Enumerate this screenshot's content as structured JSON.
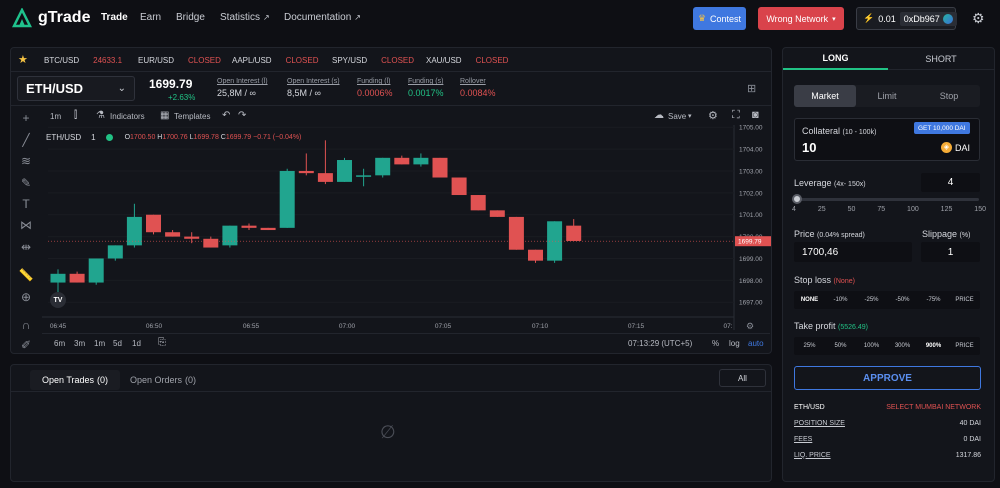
{
  "brand": {
    "name": "gTrade"
  },
  "nav": [
    {
      "label": "Trade"
    },
    {
      "label": "Earn"
    },
    {
      "label": "Bridge"
    },
    {
      "label": "Statistics"
    },
    {
      "label": "Documentation"
    }
  ],
  "header": {
    "contest_label": "Contest",
    "network_label": "Wrong Network",
    "balance": "0.01",
    "wallet": "0xDb967"
  },
  "tickers": [
    {
      "pair": "BTC/USD",
      "value": "24633.1"
    },
    {
      "pair": "EUR/USD",
      "value": "CLOSED"
    },
    {
      "pair": "AAPL/USD",
      "value": "CLOSED"
    },
    {
      "pair": "SPY/USD",
      "value": "CLOSED"
    },
    {
      "pair": "XAU/USD",
      "value": "CLOSED"
    }
  ],
  "market": {
    "pair": "ETH/USD",
    "price": "1699.79",
    "change": "+2.63%"
  },
  "stats": [
    {
      "label": "Open Interest (l)",
      "value": "25,8M / ∞"
    },
    {
      "label": "Open Interest (s)",
      "value": "8,5M / ∞"
    },
    {
      "label": "Funding (l)",
      "value": "0.0006%"
    },
    {
      "label": "Funding (s)",
      "value": "0.0017%"
    },
    {
      "label": "Rollover",
      "value": "0.0084%"
    }
  ],
  "chart_toolbar": {
    "interval": "1m",
    "indicators": "Indicators",
    "templates": "Templates",
    "save": "Save"
  },
  "legend": {
    "symbol": "ETH/USD",
    "interval": "1",
    "o_lbl": "O",
    "o": "1700.50",
    "h_lbl": "H",
    "h": "1700.76",
    "l_lbl": "L",
    "l": "1699.78",
    "c_lbl": "C",
    "c": "1699.79",
    "chg": "−0.71 (−0.04%)"
  },
  "chart_data": {
    "type": "candlestick",
    "ylim": [
      1696.6,
      1705.1
    ],
    "yticks": [
      "1705.00",
      "1704.00",
      "1703.00",
      "1702.00",
      "1701.00",
      "1700.00",
      "1699.00",
      "1698.00",
      "1697.00"
    ],
    "xticks": [
      "06:45",
      "06:50",
      "06:55",
      "07:00",
      "07:05",
      "07:10",
      "07:15",
      "07:"
    ],
    "last_price": "1699.79",
    "candles": [
      {
        "o": 1697.9,
        "h": 1698.5,
        "l": 1697.3,
        "c": 1698.3
      },
      {
        "o": 1698.3,
        "h": 1698.4,
        "l": 1697.9,
        "c": 1697.9
      },
      {
        "o": 1697.9,
        "h": 1699.0,
        "l": 1697.8,
        "c": 1699.0
      },
      {
        "o": 1699.0,
        "h": 1699.6,
        "l": 1698.9,
        "c": 1699.6
      },
      {
        "o": 1699.6,
        "h": 1701.5,
        "l": 1699.5,
        "c": 1700.9
      },
      {
        "o": 1701.0,
        "h": 1701.0,
        "l": 1700.1,
        "c": 1700.2
      },
      {
        "o": 1700.2,
        "h": 1700.3,
        "l": 1700.0,
        "c": 1700.0
      },
      {
        "o": 1700.0,
        "h": 1700.2,
        "l": 1699.7,
        "c": 1699.9
      },
      {
        "o": 1699.9,
        "h": 1700.0,
        "l": 1699.5,
        "c": 1699.5
      },
      {
        "o": 1699.6,
        "h": 1700.5,
        "l": 1699.5,
        "c": 1700.5
      },
      {
        "o": 1700.5,
        "h": 1700.6,
        "l": 1700.3,
        "c": 1700.4
      },
      {
        "o": 1700.4,
        "h": 1700.4,
        "l": 1700.3,
        "c": 1700.3
      },
      {
        "o": 1700.4,
        "h": 1703.1,
        "l": 1700.4,
        "c": 1703.0
      },
      {
        "o": 1703.0,
        "h": 1703.8,
        "l": 1702.8,
        "c": 1702.9
      },
      {
        "o": 1702.9,
        "h": 1704.4,
        "l": 1702.4,
        "c": 1702.5
      },
      {
        "o": 1702.5,
        "h": 1703.6,
        "l": 1702.5,
        "c": 1703.5
      },
      {
        "o": 1702.8,
        "h": 1703.1,
        "l": 1702.3,
        "c": 1702.8
      },
      {
        "o": 1702.8,
        "h": 1703.6,
        "l": 1702.7,
        "c": 1703.6
      },
      {
        "o": 1703.6,
        "h": 1703.7,
        "l": 1703.3,
        "c": 1703.3
      },
      {
        "o": 1703.3,
        "h": 1703.8,
        "l": 1703.2,
        "c": 1703.6
      },
      {
        "o": 1703.6,
        "h": 1703.6,
        "l": 1702.7,
        "c": 1702.7
      },
      {
        "o": 1702.7,
        "h": 1702.7,
        "l": 1701.9,
        "c": 1701.9
      },
      {
        "o": 1701.9,
        "h": 1701.9,
        "l": 1701.2,
        "c": 1701.2
      },
      {
        "o": 1701.2,
        "h": 1701.2,
        "l": 1700.9,
        "c": 1700.9
      },
      {
        "o": 1700.9,
        "h": 1700.9,
        "l": 1699.4,
        "c": 1699.4
      },
      {
        "o": 1699.4,
        "h": 1699.4,
        "l": 1698.8,
        "c": 1698.9
      },
      {
        "o": 1698.9,
        "h": 1700.7,
        "l": 1698.8,
        "c": 1700.7
      },
      {
        "o": 1700.5,
        "h": 1700.8,
        "l": 1699.8,
        "c": 1699.8
      }
    ]
  },
  "bottom_toolbar": {
    "ranges": [
      "6m",
      "3m",
      "1m",
      "5d",
      "1d"
    ],
    "clock": "07:13:29 (UTC+5)",
    "pct": "%",
    "log": "log",
    "auto": "auto"
  },
  "trades": {
    "tab_trades": "Open Trades",
    "tab_trades_count": "(0)",
    "tab_orders": "Open Orders",
    "tab_orders_count": "(0)",
    "filter": "All"
  },
  "order": {
    "long": "LONG",
    "short": "SHORT",
    "types": [
      "Market",
      "Limit",
      "Stop"
    ],
    "collateral_label": "Collateral",
    "collateral_range": "(10 - 100k)",
    "get_dai": "GET 10,000 DAI",
    "collateral_value": "10",
    "currency": "DAI",
    "leverage_label": "Leverage",
    "leverage_range": "(4x- 150x)",
    "leverage_value": "4",
    "slider_ticks": [
      "4",
      "25",
      "50",
      "75",
      "100",
      "125",
      "150"
    ],
    "slider_fraction": 0,
    "price_label": "Price",
    "price_note": "(0.04% spread)",
    "price_value": "1700,46",
    "slippage_label": "Slippage",
    "slippage_unit": "(%)",
    "slippage_value": "1",
    "sl_label": "Stop loss",
    "sl_value": "(None)",
    "sl_options": [
      "NONE",
      "-10%",
      "-25%",
      "-50%",
      "-75%",
      "PRICE"
    ],
    "tp_label": "Take profit",
    "tp_value": "(5526.49)",
    "tp_options": [
      "25%",
      "50%",
      "100%",
      "300%",
      "900%",
      "PRICE"
    ],
    "approve": "APPROVE",
    "info": [
      {
        "k": "ETH/USD",
        "v": "SELECT MUMBAI NETWORK"
      },
      {
        "k": "POSITION SIZE",
        "v": "40 DAI"
      },
      {
        "k": "FEES",
        "v": "0 DAI"
      },
      {
        "k": "LIQ. PRICE",
        "v": "1317.86"
      }
    ]
  },
  "colors": {
    "up": "#21a58f",
    "down": "#e05252",
    "accent": "#2e6ee0",
    "danger": "#d9434b"
  }
}
